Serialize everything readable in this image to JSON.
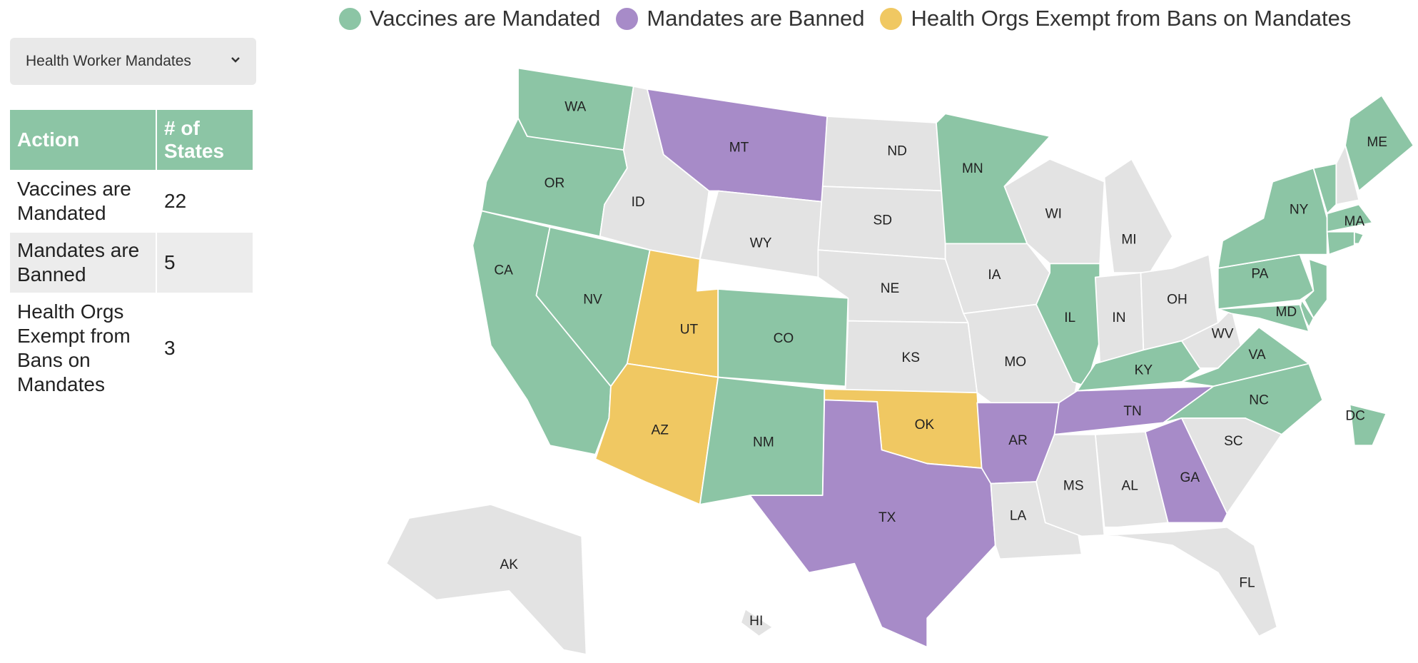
{
  "dropdown": {
    "label": "Health Worker Mandates"
  },
  "legend": [
    {
      "name": "Vaccines are Mandated",
      "color": "#8cc5a5"
    },
    {
      "name": "Mandates are Banned",
      "color": "#a78bc8"
    },
    {
      "name": "Health Orgs Exempt from Bans on Mandates",
      "color": "#f0c862"
    }
  ],
  "table": {
    "header": [
      "Action",
      "# of States"
    ],
    "rows": [
      [
        "Vaccines are Mandated",
        22
      ],
      [
        "Mandates are Banned",
        5
      ],
      [
        "Health Orgs Exempt from Bans on Mandates",
        3
      ]
    ]
  },
  "map": {
    "states": [
      {
        "label": "WA",
        "color": "#8cc5a5"
      },
      {
        "label": "OR",
        "color": "#8cc5a5"
      },
      {
        "label": "CA",
        "color": "#8cc5a5"
      },
      {
        "label": "NV",
        "color": "#8cc5a5"
      },
      {
        "label": "ID",
        "color": "#e3e3e3"
      },
      {
        "label": "MT",
        "color": "#a78bc8"
      },
      {
        "label": "WY",
        "color": "#e3e3e3"
      },
      {
        "label": "UT",
        "color": "#f0c862"
      },
      {
        "label": "AZ",
        "color": "#f0c862"
      },
      {
        "label": "CO",
        "color": "#8cc5a5"
      },
      {
        "label": "NM",
        "color": "#8cc5a5"
      },
      {
        "label": "ND",
        "color": "#e3e3e3"
      },
      {
        "label": "SD",
        "color": "#e3e3e3"
      },
      {
        "label": "NE",
        "color": "#e3e3e3"
      },
      {
        "label": "KS",
        "color": "#e3e3e3"
      },
      {
        "label": "OK",
        "color": "#f0c862"
      },
      {
        "label": "TX",
        "color": "#a78bc8"
      },
      {
        "label": "MN",
        "color": "#8cc5a5"
      },
      {
        "label": "IA",
        "color": "#e3e3e3"
      },
      {
        "label": "MO",
        "color": "#e3e3e3"
      },
      {
        "label": "AR",
        "color": "#a78bc8"
      },
      {
        "label": "LA",
        "color": "#e3e3e3"
      },
      {
        "label": "WI",
        "color": "#e3e3e3"
      },
      {
        "label": "IL",
        "color": "#8cc5a5"
      },
      {
        "label": "MI",
        "color": "#e3e3e3"
      },
      {
        "label": "IN",
        "color": "#e3e3e3"
      },
      {
        "label": "OH",
        "color": "#e3e3e3"
      },
      {
        "label": "KY",
        "color": "#8cc5a5"
      },
      {
        "label": "TN",
        "color": "#a78bc8"
      },
      {
        "label": "WV",
        "color": "#e3e3e3"
      },
      {
        "label": "VA",
        "color": "#8cc5a5"
      },
      {
        "label": "NC",
        "color": "#8cc5a5"
      },
      {
        "label": "SC",
        "color": "#e3e3e3"
      },
      {
        "label": "GA",
        "color": "#a78bc8"
      },
      {
        "label": "AL",
        "color": "#e3e3e3"
      },
      {
        "label": "MS",
        "color": "#e3e3e3"
      },
      {
        "label": "FL",
        "color": "#e3e3e3"
      },
      {
        "label": "PA",
        "color": "#8cc5a5"
      },
      {
        "label": "NY",
        "color": "#8cc5a5"
      },
      {
        "label": null,
        "color": "#8cc5a5"
      },
      {
        "label": null,
        "color": "#8cc5a5"
      },
      {
        "label": "MD",
        "color": "#8cc5a5"
      },
      {
        "label": null,
        "color": "#8cc5a5"
      },
      {
        "label": null,
        "color": "#e3e3e3"
      },
      {
        "label": "ME",
        "color": "#8cc5a5"
      },
      {
        "label": "MA",
        "color": "#8cc5a5"
      },
      {
        "label": null,
        "color": "#8cc5a5"
      },
      {
        "label": null,
        "color": "#8cc5a5"
      },
      {
        "label": "DC",
        "color": "#8cc5a5"
      },
      {
        "label": "AK",
        "color": "#e3e3e3"
      },
      {
        "label": "HI",
        "color": "#e3e3e3"
      }
    ]
  }
}
